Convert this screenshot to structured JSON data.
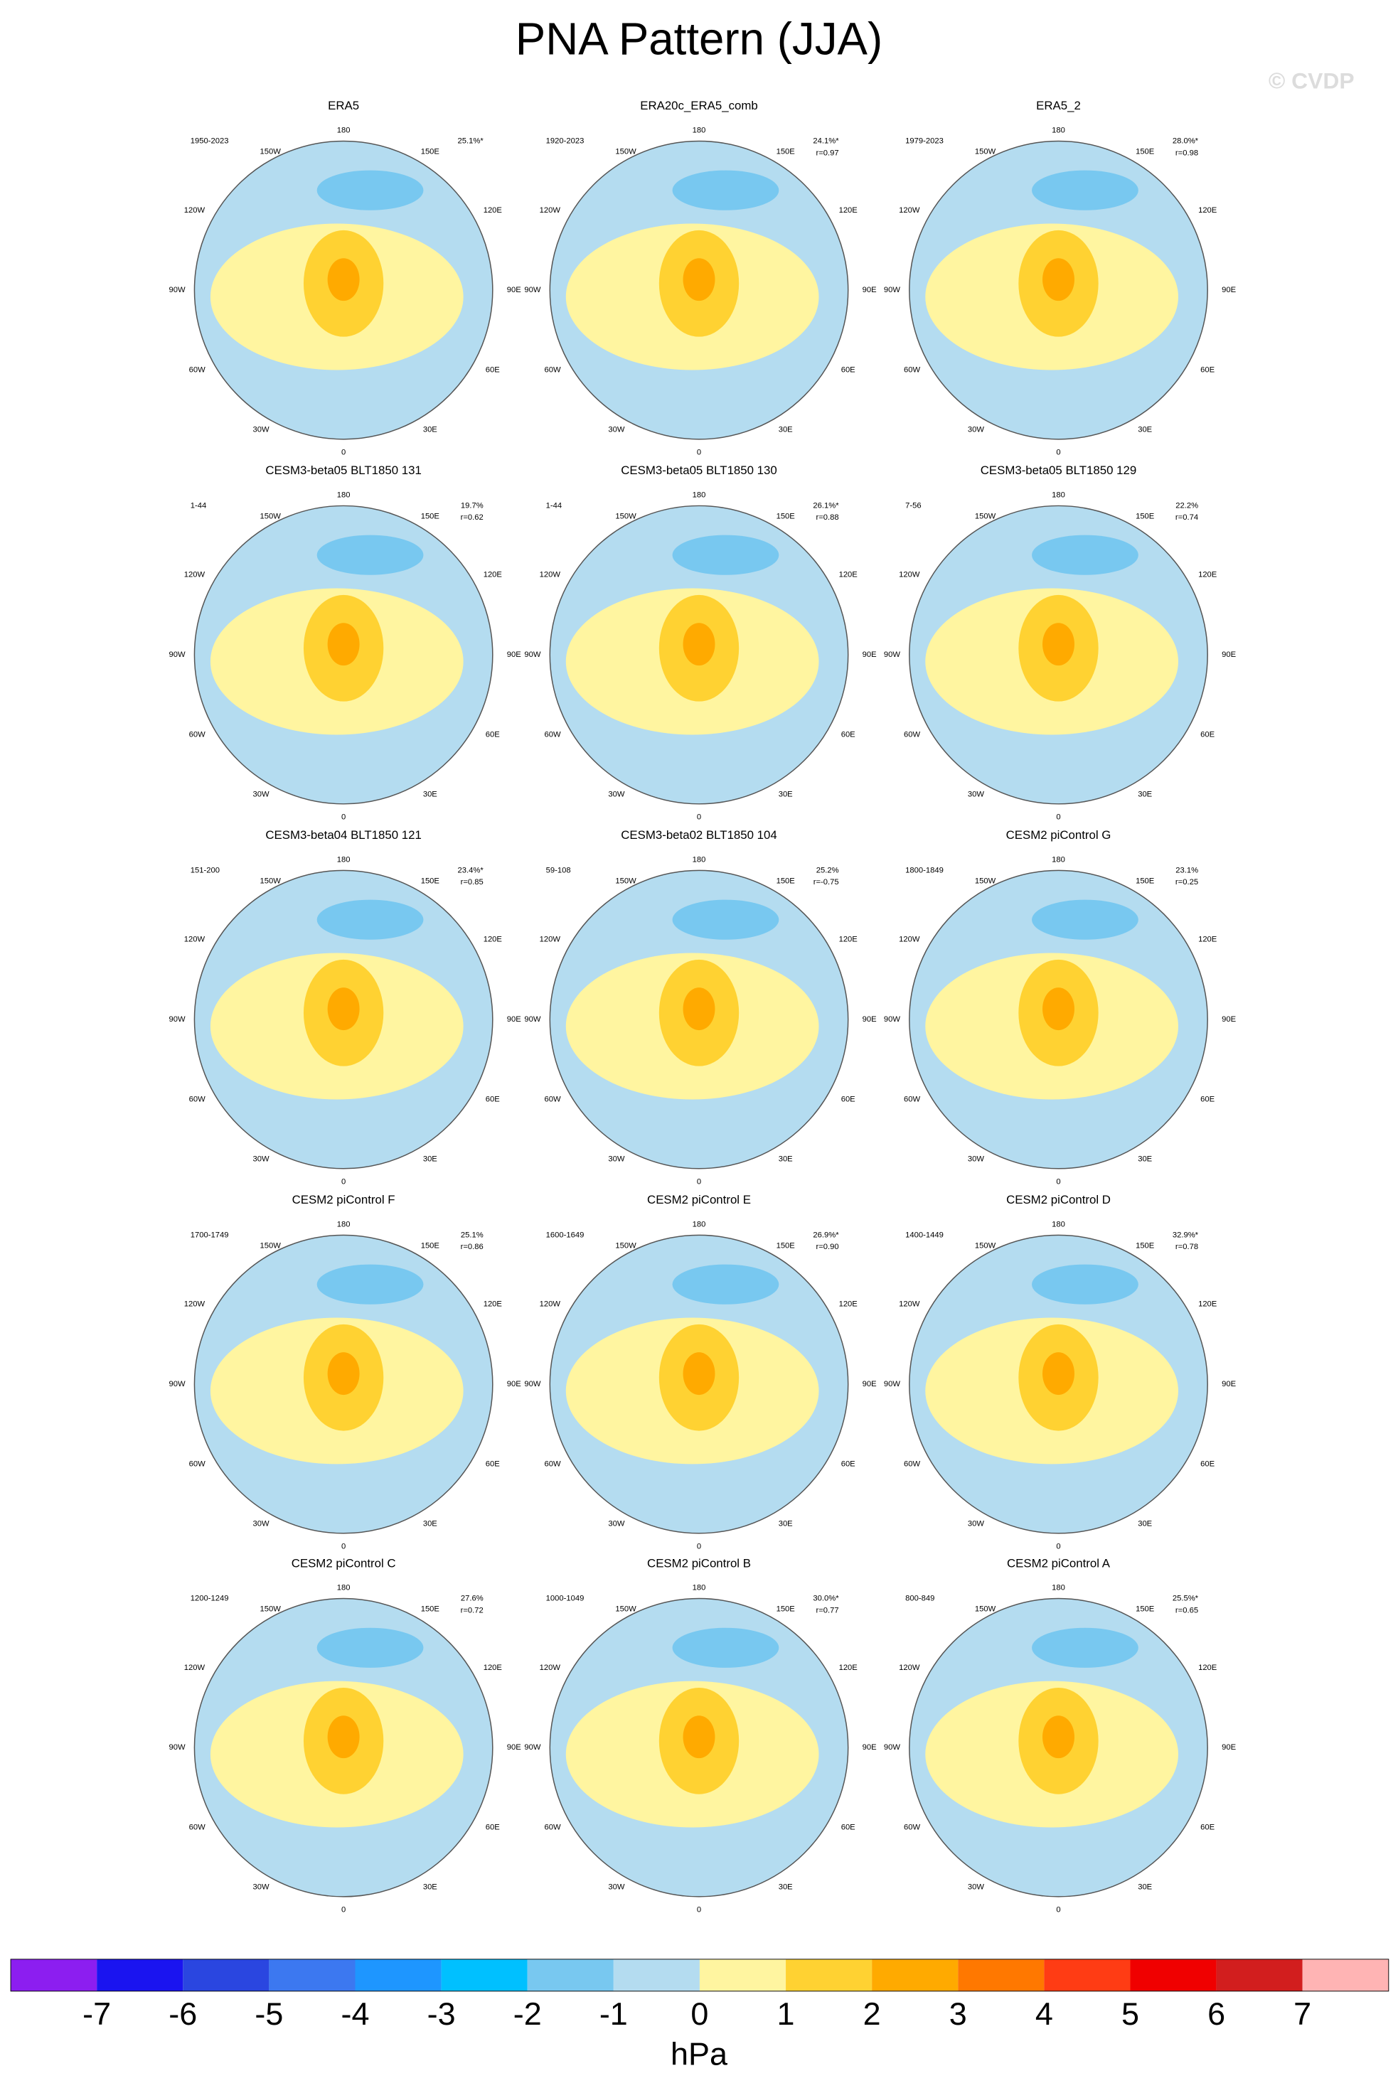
{
  "title": "PNA Pattern (JJA)",
  "watermark": "© CVDP",
  "lon_labels": [
    "180",
    "150W",
    "150E",
    "120W",
    "120E",
    "90W",
    "90E",
    "60W",
    "60E",
    "30W",
    "30E",
    "0"
  ],
  "panels": [
    {
      "title": "ERA5",
      "years": "1950-2023",
      "pct": "25.1%*"
    },
    {
      "title": "ERA20c_ERA5_comb",
      "years": "1920-2023",
      "pct": "24.1%*",
      "r": "r=0.97"
    },
    {
      "title": "ERA5_2",
      "years": "1979-2023",
      "pct": "28.0%*",
      "r": "r=0.98"
    },
    {
      "title": "CESM3-beta05 BLT1850 131",
      "years": "1-44",
      "pct": "19.7%",
      "r": "r=0.62"
    },
    {
      "title": "CESM3-beta05 BLT1850 130",
      "years": "1-44",
      "pct": "26.1%*",
      "r": "r=0.88"
    },
    {
      "title": "CESM3-beta05 BLT1850 129",
      "years": "7-56",
      "pct": "22.2%",
      "r": "r=0.74"
    },
    {
      "title": "CESM3-beta04 BLT1850 121",
      "years": "151-200",
      "pct": "23.4%*",
      "r": "r=0.85"
    },
    {
      "title": "CESM3-beta02 BLT1850 104",
      "years": "59-108",
      "pct": "25.2%",
      "r": "r=-0.75"
    },
    {
      "title": "CESM2 piControl G",
      "years": "1800-1849",
      "pct": "23.1%",
      "r": "r=0.25"
    },
    {
      "title": "CESM2 piControl F",
      "years": "1700-1749",
      "pct": "25.1%",
      "r": "r=0.86"
    },
    {
      "title": "CESM2 piControl E",
      "years": "1600-1649",
      "pct": "26.9%*",
      "r": "r=0.90"
    },
    {
      "title": "CESM2 piControl D",
      "years": "1400-1449",
      "pct": "32.9%*",
      "r": "r=0.78"
    },
    {
      "title": "CESM2 piControl C",
      "years": "1200-1249",
      "pct": "27.6%",
      "r": "r=0.72"
    },
    {
      "title": "CESM2 piControl B",
      "years": "1000-1049",
      "pct": "30.0%*",
      "r": "r=0.77"
    },
    {
      "title": "CESM2 piControl A",
      "years": "800-849",
      "pct": "25.5%*",
      "r": "r=0.65"
    }
  ],
  "colorbar": {
    "label": "hPa",
    "ticks": [
      -7,
      -6,
      -5,
      -4,
      -3,
      -2,
      -1,
      0,
      1,
      2,
      3,
      4,
      5,
      6,
      7
    ],
    "colors": [
      "#8c1ef0",
      "#1a14f0",
      "#2a46e0",
      "#3c78f0",
      "#1e96ff",
      "#00c0ff",
      "#78c8f0",
      "#b4dcf0",
      "#fff5a0",
      "#ffd232",
      "#ffaa00",
      "#ff7800",
      "#ff3c14",
      "#f00000",
      "#d21e1e",
      "#ffb4b4"
    ]
  }
}
